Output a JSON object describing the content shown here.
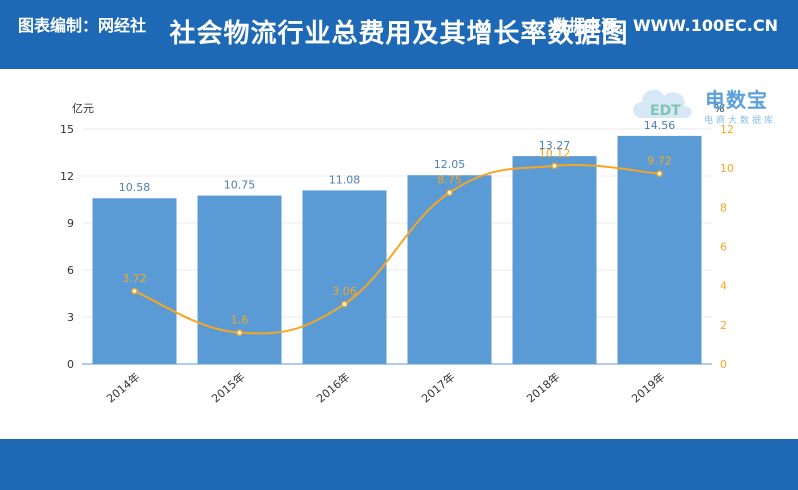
{
  "header": {
    "title": "社会物流行业总费用及其增长率数据图"
  },
  "footer": {
    "left": "图表编制：网经社",
    "right": "数据来源：WWW.100EC.CN"
  },
  "watermark": {
    "brand_text": "电数宝",
    "brand_sub": "电商大数据库",
    "cloud_text": "EDT"
  },
  "colors": {
    "header_bg": "#1d69b6",
    "bar": "#5b9bd5",
    "line": "#f5a623",
    "bar_label": "#4a7fb5"
  },
  "chart_data": {
    "type": "bar+line",
    "categories": [
      "2014年",
      "2015年",
      "2016年",
      "2017年",
      "2018年",
      "2019年"
    ],
    "series": [
      {
        "values": [
          10.58,
          10.75,
          11.08,
          12.05,
          13.27,
          14.56
        ],
        "axis": "left",
        "kind": "bar"
      },
      {
        "values": [
          3.72,
          1.6,
          3.06,
          8.75,
          10.12,
          9.72
        ],
        "axis": "right",
        "kind": "line"
      }
    ],
    "left_axis": {
      "label": "亿元",
      "range": [
        0,
        15
      ],
      "ticks": [
        0,
        3,
        6,
        9,
        12,
        15
      ]
    },
    "right_axis": {
      "label": "%",
      "range": [
        0,
        12
      ],
      "ticks": [
        0,
        2,
        4,
        6,
        8,
        10,
        12
      ]
    },
    "grid": true
  }
}
